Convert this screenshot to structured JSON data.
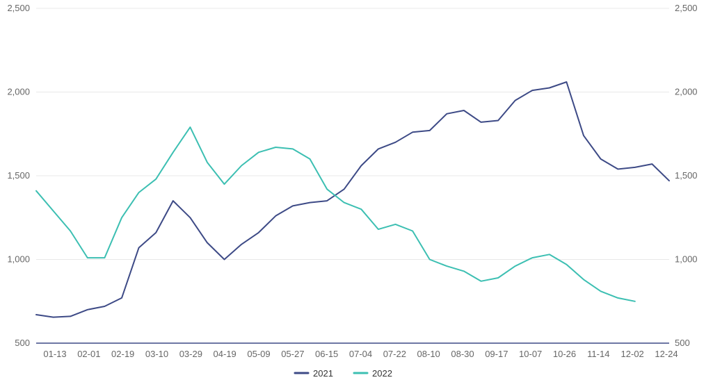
{
  "chart_data": {
    "type": "line",
    "title": "",
    "xlabel": "",
    "ylabel": "",
    "ylim": [
      500,
      2500
    ],
    "y_ticks": [
      500,
      1000,
      1500,
      2000,
      2500
    ],
    "y_tick_labels": [
      "500",
      "1,000",
      "1,500",
      "2,000",
      "2,500"
    ],
    "y_axes": "left and right (mirrored)",
    "grid": "horizontal",
    "legend_position": "bottom-center",
    "x_tick_labels": [
      "01-13",
      "02-01",
      "02-19",
      "03-10",
      "03-29",
      "04-19",
      "05-09",
      "05-27",
      "06-15",
      "07-04",
      "07-22",
      "08-10",
      "08-30",
      "09-17",
      "10-07",
      "10-26",
      "11-14",
      "12-02",
      "12-24"
    ],
    "x": [
      "01-04",
      "01-13",
      "01-22",
      "02-01",
      "02-10",
      "02-19",
      "03-01",
      "03-10",
      "03-20",
      "03-29",
      "04-08",
      "04-19",
      "04-29",
      "05-09",
      "05-18",
      "05-27",
      "06-05",
      "06-15",
      "06-25",
      "07-04",
      "07-13",
      "07-22",
      "08-01",
      "08-10",
      "08-20",
      "08-30",
      "09-08",
      "09-17",
      "09-27",
      "10-07",
      "10-16",
      "10-26",
      "11-05",
      "11-14",
      "11-23",
      "12-02",
      "12-12",
      "12-24"
    ],
    "series": [
      {
        "name": "2021",
        "color": "#3d4a86",
        "values": [
          670,
          655,
          660,
          700,
          720,
          770,
          1070,
          1160,
          1350,
          1250,
          1100,
          1000,
          1090,
          1160,
          1260,
          1320,
          1340,
          1350,
          1420,
          1560,
          1660,
          1700,
          1760,
          1770,
          1870,
          1890,
          1820,
          1830,
          1950,
          2010,
          2025,
          2060,
          1740,
          1600,
          1540,
          1550,
          1570,
          1470
        ]
      },
      {
        "name": "2022",
        "color": "#3cbfb2",
        "values": [
          1410,
          1290,
          1170,
          1010,
          1010,
          1250,
          1400,
          1480,
          1640,
          1790,
          1580,
          1450,
          1560,
          1640,
          1670,
          1660,
          1600,
          1420,
          1340,
          1300,
          1180,
          1210,
          1170,
          1000,
          960,
          930,
          870,
          890,
          960,
          1010,
          1030,
          970,
          880,
          810,
          770,
          750,
          null,
          null
        ]
      }
    ]
  }
}
